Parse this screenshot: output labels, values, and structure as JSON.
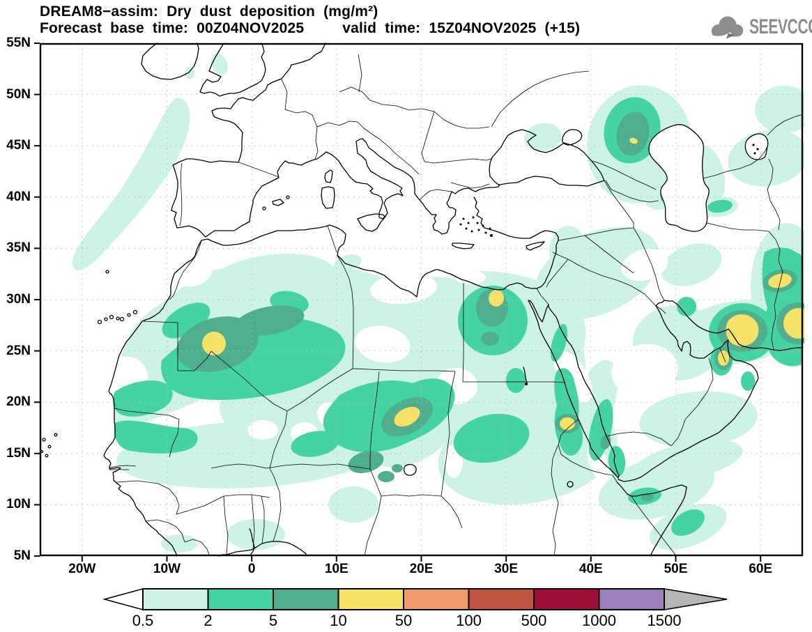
{
  "header": {
    "title": "DREAM8−assim: Dry dust deposition (mg/m²)",
    "forecast_base": "Forecast base time: 00Z04NOV2025",
    "valid_time": "valid time: 15Z04NOV2025 (+15)",
    "logo_text": "SEEVCCC"
  },
  "map": {
    "lat_labels": [
      "55N",
      "50N",
      "45N",
      "40N",
      "35N",
      "30N",
      "25N",
      "20N",
      "15N",
      "10N",
      "5N"
    ],
    "lon_labels": [
      "20W",
      "10W",
      "0",
      "10E",
      "20E",
      "30E",
      "40E",
      "50E",
      "60E"
    ]
  },
  "colorbar": {
    "labels": [
      "0.5",
      "2",
      "5",
      "10",
      "50",
      "100",
      "500",
      "1000",
      "1500"
    ],
    "levels": [
      0.5,
      2,
      5,
      10,
      50,
      100,
      500,
      1000,
      1500
    ],
    "cell_colors": [
      "#cdf2e8",
      "#45d3a4",
      "#4fae8e",
      "#f7e269",
      "#f2996c",
      "#c1553f",
      "#9e1038",
      "#9a7fb8"
    ],
    "under_color": "#ffffff",
    "over_color": "#b5b5b5",
    "unit": "mg/m²"
  }
}
